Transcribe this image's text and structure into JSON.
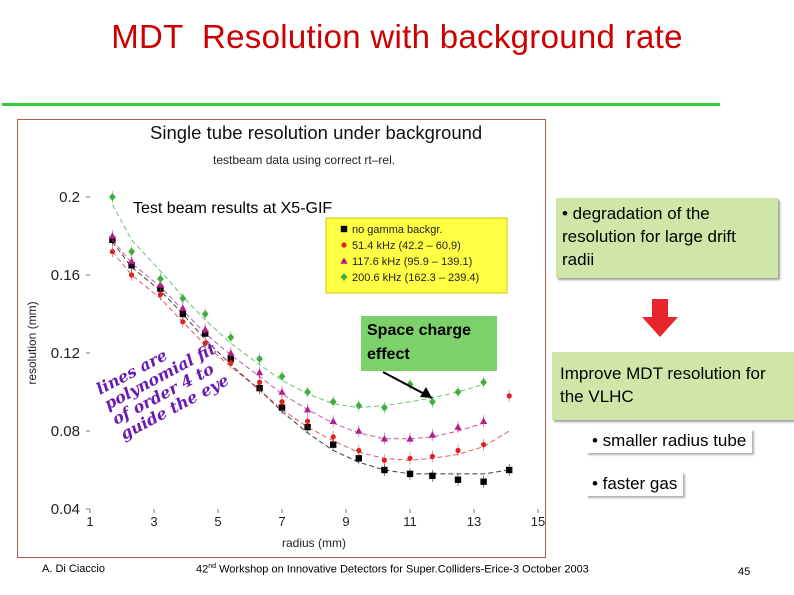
{
  "slide": {
    "title": "MDT  Resolution with background rate",
    "degradation_note": "• degradation of the resolution for large drift radii",
    "space_charge_note": "Space charge effect",
    "improve_note": "Improve MDT resolution for the VLHC",
    "bullet_smaller": "• smaller radius tube",
    "bullet_faster": "• faster gas",
    "footer_author": "A. Di Ciaccio",
    "footer_workshop_num": "42",
    "footer_workshop_sup": "nd",
    "footer_workshop_text": " Workshop on Innovative Detectors for Super.Colliders-Erice-3 October 2003",
    "page_number": "45"
  },
  "colors": {
    "title": "#cc0000",
    "rule": "#33cc33",
    "note_bg": "#cfe6a8",
    "space_charge_bg": "#7cd16b",
    "arrow": "#e8242c"
  },
  "chart_data": {
    "type": "scatter",
    "title": "Single tube resolution under background",
    "subtitle": "testbeam data using correct rt–rel.",
    "overlay_label": "Test beam results at X5-GIF",
    "handwritten_note": [
      "lines are",
      "polynomial fit",
      "of order 4 to",
      "guide the eye"
    ],
    "xlabel": "radius (mm)",
    "ylabel": "resolution (mm)",
    "xlim": [
      1,
      15
    ],
    "ylim": [
      0.04,
      0.2
    ],
    "xticks": [
      1,
      3,
      5,
      7,
      9,
      11,
      13,
      15
    ],
    "yticks": [
      0.04,
      0.08,
      0.12,
      0.16,
      0.2
    ],
    "ytick_labels": [
      "0.04",
      "0.08",
      "0.12",
      "0.16",
      "0.2"
    ],
    "legend_position": "top-right",
    "series": [
      {
        "name": "no gamma backgr.",
        "color": "#000000",
        "marker": "square",
        "x": [
          1.7,
          2.3,
          3.2,
          3.9,
          4.6,
          5.4,
          6.3,
          7.0,
          7.8,
          8.6,
          9.4,
          10.2,
          11.0,
          11.7,
          12.5,
          13.3,
          14.1
        ],
        "y": [
          0.178,
          0.165,
          0.153,
          0.14,
          0.13,
          0.117,
          0.102,
          0.092,
          0.082,
          0.073,
          0.066,
          0.06,
          0.058,
          0.057,
          0.055,
          0.054,
          0.06
        ],
        "fit": [
          0.177,
          0.164,
          0.152,
          0.14,
          0.127,
          0.114,
          0.101,
          0.09,
          0.079,
          0.07,
          0.064,
          0.06,
          0.058,
          0.058,
          0.058,
          0.058,
          0.06
        ]
      },
      {
        "name": "51.4 kHz (42.2 – 60.9)",
        "color": "#dd2222",
        "marker": "circle",
        "x": [
          1.7,
          2.3,
          3.2,
          3.9,
          4.6,
          5.4,
          6.3,
          7.0,
          7.8,
          8.6,
          9.4,
          10.2,
          11.0,
          11.7,
          12.5,
          13.3,
          14.1
        ],
        "y": [
          0.172,
          0.16,
          0.15,
          0.136,
          0.125,
          0.115,
          0.105,
          0.095,
          0.085,
          0.077,
          0.07,
          0.065,
          0.066,
          0.067,
          0.07,
          0.073,
          0.098
        ],
        "fit": [
          0.172,
          0.16,
          0.148,
          0.136,
          0.124,
          0.113,
          0.101,
          0.091,
          0.082,
          0.075,
          0.069,
          0.066,
          0.065,
          0.066,
          0.068,
          0.072,
          0.08
        ]
      },
      {
        "name": "117.6 kHz (95.9 – 139.1)",
        "color": "#b0208a",
        "marker": "triangle",
        "x": [
          1.7,
          2.3,
          3.2,
          3.9,
          4.6,
          5.4,
          6.3,
          7.0,
          7.8,
          8.6,
          9.4,
          10.2,
          11.0,
          11.7,
          12.5,
          13.3
        ],
        "y": [
          0.18,
          0.167,
          0.155,
          0.143,
          0.132,
          0.12,
          0.11,
          0.1,
          0.091,
          0.085,
          0.08,
          0.076,
          0.076,
          0.078,
          0.082,
          0.085
        ],
        "fit": [
          0.178,
          0.166,
          0.154,
          0.142,
          0.13,
          0.119,
          0.108,
          0.099,
          0.091,
          0.084,
          0.079,
          0.076,
          0.076,
          0.077,
          0.08,
          0.084
        ]
      },
      {
        "name": "200.6 kHz (162.3 – 239.4)",
        "color": "#3fae3f",
        "marker": "diamond",
        "x": [
          1.7,
          2.3,
          3.2,
          3.9,
          4.6,
          5.4,
          6.3,
          7.0,
          7.8,
          8.6,
          9.4,
          10.2,
          11.0,
          11.7,
          12.5,
          13.3
        ],
        "y": [
          0.2,
          0.172,
          0.158,
          0.148,
          0.14,
          0.128,
          0.117,
          0.108,
          0.1,
          0.095,
          0.093,
          0.092,
          0.104,
          0.095,
          0.1,
          0.105
        ],
        "fit": [
          0.196,
          0.178,
          0.162,
          0.149,
          0.137,
          0.125,
          0.114,
          0.106,
          0.099,
          0.094,
          0.092,
          0.093,
          0.095,
          0.097,
          0.1,
          0.104
        ]
      }
    ]
  }
}
